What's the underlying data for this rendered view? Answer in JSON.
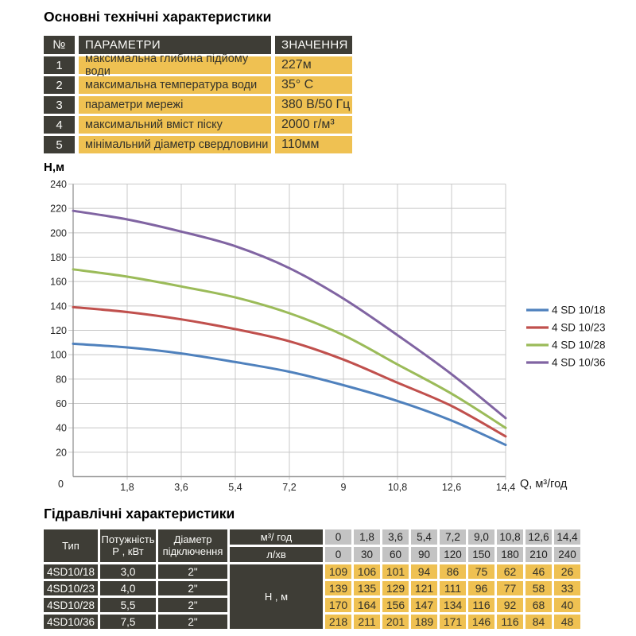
{
  "colors": {
    "accent_yellow": "#EFC152",
    "dark_cell": "#3E3D36",
    "gray_cell": "#C3C3C3",
    "grid": "#C8C8C8",
    "axis": "#9B9B9B"
  },
  "spec_section": {
    "title": "Основні технічні характеристики",
    "headers": {
      "num": "№",
      "param": "ПАРАМЕТРИ",
      "value": "ЗНАЧЕННЯ"
    },
    "rows": [
      {
        "num": "1",
        "param": "максимальна глибина підйому води",
        "value": "227м"
      },
      {
        "num": "2",
        "param": "максимальна температура води",
        "value": "35° С"
      },
      {
        "num": "3",
        "param": "параметри мережі",
        "value": "380 В/50 Гц"
      },
      {
        "num": "4",
        "param": "максимальний вміст піску",
        "value": "2000 г/м³"
      },
      {
        "num": "5",
        "param": "мінімальний діаметр свердловини",
        "value": "110мм"
      }
    ]
  },
  "chart_data": {
    "type": "line",
    "title": "",
    "xlabel": "Q,  м³/год",
    "ylabel": "Н,м",
    "ylim": [
      0,
      240
    ],
    "ytick_step": 20,
    "grid": true,
    "legend_position": "right",
    "x": [
      0,
      1.8,
      3.6,
      5.4,
      7.2,
      9,
      10.8,
      12.6,
      14.4
    ],
    "xtick_labels": [
      "0",
      "1,8",
      "3,6",
      "5,4",
      "7,2",
      "9",
      "10,8",
      "12,6",
      "14,4"
    ],
    "ytick_labels": [
      "0",
      "20",
      "40",
      "60",
      "80",
      "100",
      "120",
      "140",
      "160",
      "180",
      "200",
      "220",
      "240"
    ],
    "series": [
      {
        "name": "4 SD 10/18",
        "color": "#4F81BD",
        "values": [
          109,
          106,
          101,
          94,
          86,
          75,
          62,
          46,
          26
        ]
      },
      {
        "name": "4 SD 10/23",
        "color": "#C0504D",
        "values": [
          139,
          135,
          129,
          121,
          111,
          96,
          77,
          58,
          33
        ]
      },
      {
        "name": "4 SD 10/28",
        "color": "#9BBB59",
        "values": [
          170,
          164,
          156,
          147,
          134,
          116,
          92,
          68,
          40
        ]
      },
      {
        "name": "4 SD 10/36",
        "color": "#8064A2",
        "values": [
          218,
          211,
          201,
          189,
          171,
          146,
          116,
          84,
          48
        ]
      }
    ]
  },
  "hydraulic_section": {
    "title": "Гідравлічні характеристики",
    "col_headers": {
      "type": "Тип",
      "power_line1": "Потужність",
      "power_line2": "Р , кВт",
      "diameter_line1": "Діаметр",
      "diameter_line2": "підключення",
      "flow_m3": "м³/ год",
      "flow_lmin": "л/хв",
      "head": "Н , м"
    },
    "flow_m3_values": [
      "0",
      "1,8",
      "3,6",
      "5,4",
      "7,2",
      "9,0",
      "10,8",
      "12,6",
      "14,4"
    ],
    "flow_lmin_values": [
      "0",
      "30",
      "60",
      "90",
      "120",
      "150",
      "180",
      "210",
      "240"
    ],
    "rows": [
      {
        "type": "4SD10/18",
        "power": "3,0",
        "diameter": "2\"",
        "heads": [
          "109",
          "106",
          "101",
          "94",
          "86",
          "75",
          "62",
          "46",
          "26"
        ]
      },
      {
        "type": "4SD10/23",
        "power": "4,0",
        "diameter": "2\"",
        "heads": [
          "139",
          "135",
          "129",
          "121",
          "111",
          "96",
          "77",
          "58",
          "33"
        ]
      },
      {
        "type": "4SD10/28",
        "power": "5,5",
        "diameter": "2\"",
        "heads": [
          "170",
          "164",
          "156",
          "147",
          "134",
          "116",
          "92",
          "68",
          "40"
        ]
      },
      {
        "type": "4SD10/36",
        "power": "7,5",
        "diameter": "2\"",
        "heads": [
          "218",
          "211",
          "201",
          "189",
          "171",
          "146",
          "116",
          "84",
          "48"
        ]
      }
    ]
  }
}
